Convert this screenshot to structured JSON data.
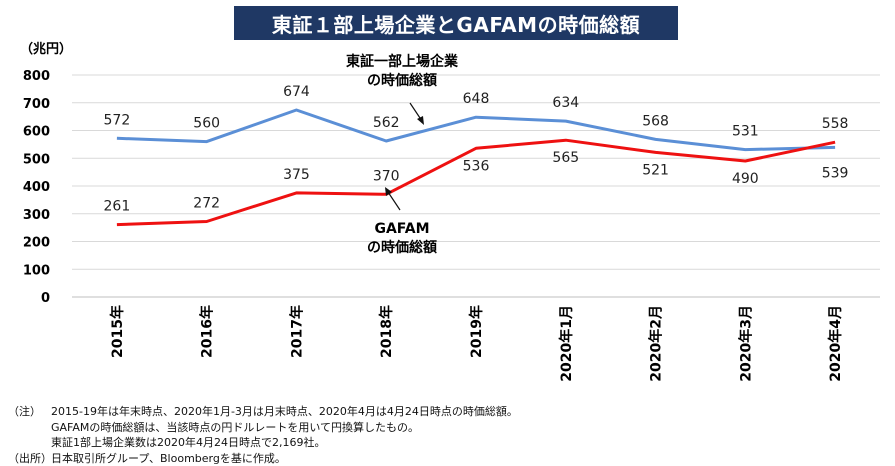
{
  "title": "東証１部上場企業とGAFAMの時価総額",
  "chart_data": {
    "type": "line",
    "ylabel": "（兆円）",
    "ylim": [
      0,
      800
    ],
    "yticks": [
      0,
      100,
      200,
      300,
      400,
      500,
      600,
      700,
      800
    ],
    "categories": [
      "2015年",
      "2016年",
      "2017年",
      "2018年",
      "2019年",
      "2020年1月",
      "2020年2月",
      "2020年3月",
      "2020年4月"
    ],
    "series": [
      {
        "name": "東証一部上場企業の時価総額",
        "color": "#5b8fd6",
        "values": [
          572,
          560,
          674,
          562,
          648,
          634,
          568,
          531,
          539
        ]
      },
      {
        "name": "GAFAMの時価総額",
        "color": "#ee1111",
        "values": [
          261,
          272,
          375,
          370,
          536,
          565,
          521,
          490,
          558
        ]
      }
    ],
    "annotations": [
      {
        "lines": [
          "東証一部上場企業",
          "の時価総額"
        ]
      },
      {
        "lines": [
          "GAFAM",
          "の時価総額"
        ]
      }
    ]
  },
  "notes": [
    {
      "tag": "（注）",
      "text": "2015-19年は年末時点、2020年1月-3月は月末時点、2020年4月は4月24日時点の時価総額。"
    },
    {
      "tag": "",
      "text": "GAFAMの時価総額は、当該時点の円ドルレートを用いて円換算したもの。"
    },
    {
      "tag": "",
      "text": "東証1部上場企業数は2020年4月24日時点で2,169社。"
    },
    {
      "tag": "（出所）",
      "text": "日本取引所グループ、Bloombergを基に作成。"
    }
  ]
}
